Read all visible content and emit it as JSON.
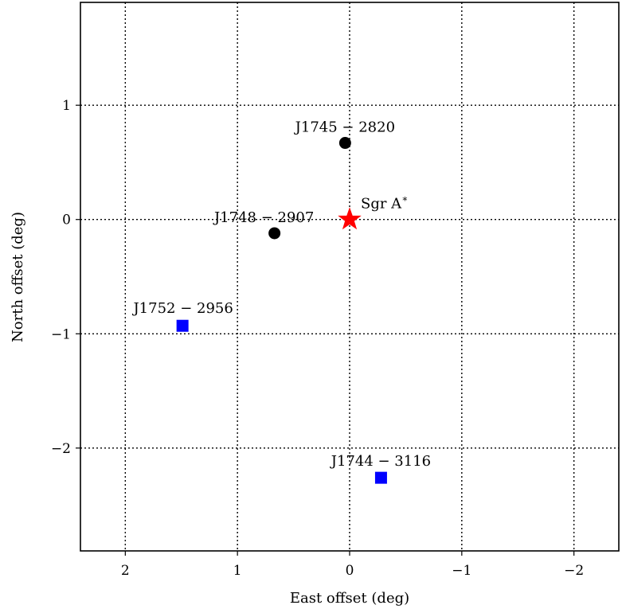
{
  "chart_data": {
    "type": "scatter",
    "title": "",
    "xlabel": "East offset (deg)",
    "ylabel": "North offset (deg)",
    "xlim": [
      2.4,
      -2.4
    ],
    "ylim": [
      -2.9,
      1.9
    ],
    "x_inverted": true,
    "grid": true,
    "x_ticks": [
      2,
      1,
      0,
      -1,
      -2
    ],
    "x_tick_labels": [
      "2",
      "1",
      "0",
      "−1",
      "−2"
    ],
    "y_ticks": [
      1,
      0,
      -1,
      -2
    ],
    "y_tick_labels": [
      "1",
      "0",
      "−1",
      "−2"
    ],
    "points": [
      {
        "label": "Sgr A*",
        "label_main": "Sgr A",
        "label_sup": "∗",
        "x": 0.0,
        "y": 0.0,
        "marker": "star",
        "color": "#ff0000"
      },
      {
        "label": "J1745 − 2820",
        "x": 0.04,
        "y": 0.67,
        "marker": "circle",
        "color": "#000000"
      },
      {
        "label": "J1748 − 2907",
        "x": 0.67,
        "y": -0.12,
        "marker": "circle",
        "color": "#000000"
      },
      {
        "label": "J1752 − 2956",
        "x": 1.49,
        "y": -0.93,
        "marker": "square",
        "color": "#0000ff"
      },
      {
        "label": "J1744 − 3116",
        "x": -0.28,
        "y": -2.26,
        "marker": "square",
        "color": "#0000ff"
      }
    ]
  }
}
